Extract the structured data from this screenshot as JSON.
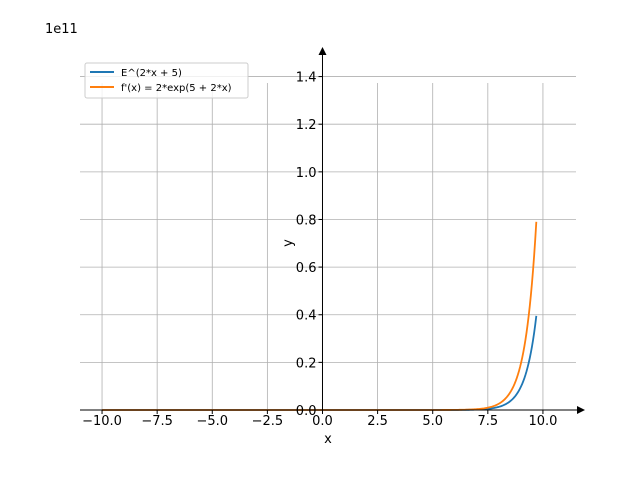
{
  "chart_data": {
    "type": "line",
    "xlabel": "x",
    "ylabel": "y",
    "y_offset_label": "1e11",
    "xlim": [
      -11.0,
      11.5
    ],
    "ylim": [
      0,
      1.52
    ],
    "y_scale_factor": 100000000000,
    "x_ticks": [
      -10.0,
      -7.5,
      -5.0,
      -2.5,
      0.0,
      2.5,
      5.0,
      7.5,
      10.0
    ],
    "x_tick_labels": [
      "−10.0",
      "−7.5",
      "−5.0",
      "−2.5",
      "0.0",
      "2.5",
      "5.0",
      "7.5",
      "10.0"
    ],
    "y_ticks": [
      0.0,
      0.2,
      0.4,
      0.6,
      0.8,
      1.0,
      1.2,
      1.4
    ],
    "y_tick_labels": [
      "0.0",
      "0.2",
      "0.4",
      "0.6",
      "0.8",
      "1.0",
      "1.2",
      "1.4"
    ],
    "grid": true,
    "legend_position": "top-left",
    "x_domain": [
      -10,
      9.7
    ],
    "series": [
      {
        "name": "E^(2*x + 5)",
        "color": "#1f77b4",
        "coefficient": 1
      },
      {
        "name": "f'(x) = 2*exp(5 + 2*x)",
        "color": "#ff7f0e",
        "coefficient": 2
      }
    ]
  }
}
